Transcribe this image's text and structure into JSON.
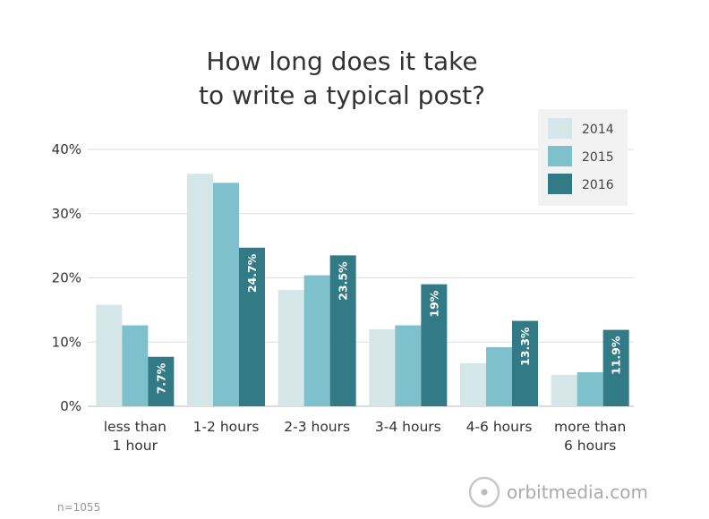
{
  "chart_data": {
    "type": "bar",
    "title": [
      "How long does it take",
      "to write a typical post?"
    ],
    "xlabel": "",
    "ylabel": "",
    "categories": [
      [
        "less than",
        "1 hour"
      ],
      [
        "1-2 hours"
      ],
      [
        "2-3 hours"
      ],
      [
        "3-4 hours"
      ],
      [
        "4-6 hours"
      ],
      [
        "more than",
        "6 hours"
      ]
    ],
    "series": [
      {
        "name": "2014",
        "color": "#d5e6e8",
        "values": [
          15.8,
          36.2,
          18.1,
          12.0,
          6.7,
          4.9
        ],
        "data_labels": [
          "",
          "",
          "",
          "",
          "",
          ""
        ]
      },
      {
        "name": "2015",
        "color": "#7ec0cb",
        "values": [
          12.6,
          34.8,
          20.4,
          12.6,
          9.2,
          5.3
        ],
        "data_labels": [
          "",
          "",
          "",
          "",
          "",
          ""
        ]
      },
      {
        "name": "2016",
        "color": "#327a86",
        "values": [
          7.7,
          24.7,
          23.5,
          19.0,
          13.3,
          11.9
        ],
        "data_labels": [
          "7.7%",
          "24.7%",
          "23.5%",
          "19%",
          "13.3%",
          "11.9%"
        ]
      }
    ],
    "ylim": [
      0,
      40
    ],
    "yticks": [
      0,
      10,
      20,
      30,
      40
    ],
    "ytick_labels": [
      "0%",
      "10%",
      "20%",
      "30%",
      "40%"
    ],
    "grid": true,
    "legend_position": "top-right"
  },
  "footnote": "n=1055",
  "brand": "orbitmedia.com",
  "colors": {
    "text": "#333333",
    "grid": "#dddddd",
    "legend_bg": "#f2f2f2"
  }
}
